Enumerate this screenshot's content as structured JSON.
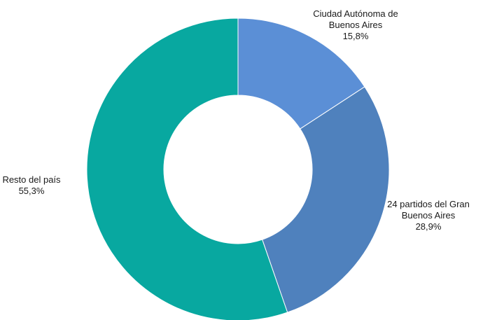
{
  "chart_data": {
    "type": "pie",
    "variant": "donut",
    "title": "",
    "categories": [
      "Ciudad Autónoma de Buenos Aires",
      "24 partidos del Gran Buenos Aires",
      "Resto del país"
    ],
    "values": [
      15.8,
      28.9,
      55.3
    ],
    "unit": "%",
    "colors": [
      "#5B8FD6",
      "#4F81BD",
      "#08A8A0"
    ],
    "labels": [
      {
        "lines": [
          "Ciudad Autónoma de",
          "Buenos Aires"
        ],
        "value_text": "15,8%"
      },
      {
        "lines": [
          "24 partidos del Gran",
          "Buenos Aires"
        ],
        "value_text": "28,9%"
      },
      {
        "lines": [
          "Resto del país"
        ],
        "value_text": "55,3%"
      }
    ],
    "legend": "none",
    "start_angle": "12 o'clock, clockwise"
  }
}
